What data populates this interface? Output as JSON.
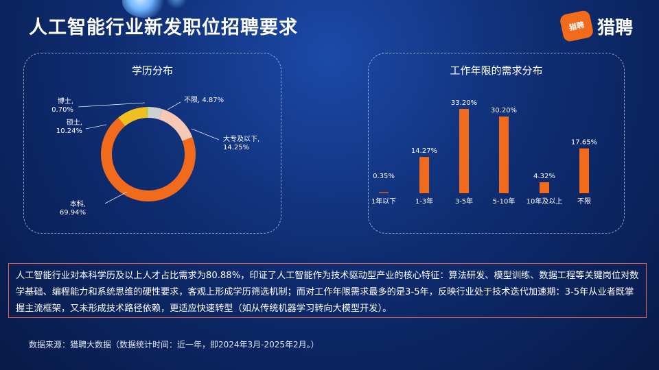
{
  "header": {
    "title": "人工智能行业新发职位招聘要求",
    "logo_badge": "猎聘",
    "logo_text": "猎聘",
    "brand_color": "#f26a1b"
  },
  "panels": {
    "education_title": "学历分布",
    "experience_title": "工作年限的需求分布"
  },
  "chart_data": [
    {
      "type": "pie",
      "title": "学历分布",
      "donut": true,
      "slices": [
        {
          "name": "不限",
          "value": 4.87,
          "label": "不限, 4.87%",
          "color": "#cfcfcf"
        },
        {
          "name": "大专及以下",
          "value": 14.25,
          "label_lines": [
            "大专及以下,",
            "14.25%"
          ],
          "color": "#f7c9b4"
        },
        {
          "name": "本科",
          "value": 69.94,
          "label_lines": [
            "本科,",
            "69.94%"
          ],
          "color": "#f26a1b"
        },
        {
          "name": "硕士",
          "value": 10.24,
          "label_lines": [
            "硕士,",
            "10.24%"
          ],
          "color": "#f0c020"
        },
        {
          "name": "博士",
          "value": 0.7,
          "label_lines": [
            "博士,",
            "0.70%"
          ],
          "color": "#bcd44a"
        }
      ]
    },
    {
      "type": "bar",
      "title": "工作年限的需求分布",
      "categories": [
        "1年以下",
        "1-3年",
        "3-5年",
        "5-10年",
        "10年及以上",
        "不限"
      ],
      "values": [
        0.35,
        14.27,
        33.2,
        30.2,
        4.32,
        17.65
      ],
      "value_labels": [
        "0.35%",
        "14.27%",
        "33.20%",
        "30.20%",
        "4.32%",
        "17.65%"
      ],
      "color": "#f26a1b",
      "ylim": [
        0,
        35
      ]
    }
  ],
  "note": {
    "text": "人工智能行业对本科学历及以上人才占比需求为80.88%，印证了人工智能作为技术驱动型产业的核心特征：算法研发、模型训练、数据工程等关键岗位对数学基础、编程能力和系统思维的硬性要求，客观上形成学历筛选机制；而对工作年限需求最多的是3-5年，反映行业处于技术迭代加速期：3-5年从业者既掌握主流框架，又未形成技术路径依赖，更适应快速转型（如从传统机器学习转向大模型开发）。"
  },
  "footer": {
    "source": "数据来源：猎聘大数据（数据统计时间：近一年，即2024年3月-2025年2月。）"
  }
}
